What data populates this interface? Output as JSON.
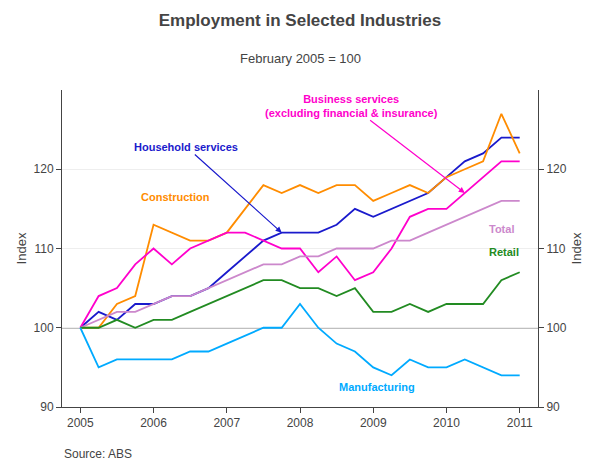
{
  "chart_data": {
    "type": "line",
    "title": "Employment in Selected Industries",
    "subtitle": "February 2005 = 100",
    "ylabel": "Index",
    "y2label": "Index",
    "source": "Source: ABS",
    "x": [
      2005.0,
      2005.25,
      2005.5,
      2005.75,
      2006.0,
      2006.25,
      2006.5,
      2006.75,
      2007.0,
      2007.25,
      2007.5,
      2007.75,
      2008.0,
      2008.25,
      2008.5,
      2008.75,
      2009.0,
      2009.25,
      2009.5,
      2009.75,
      2010.0,
      2010.25,
      2010.5,
      2010.75,
      2011.0
    ],
    "series": [
      {
        "name": "Household services",
        "color": "#1a1acc",
        "values": [
          100,
          102,
          101,
          103,
          103,
          104,
          104,
          105,
          107,
          109,
          111,
          112,
          112,
          112,
          113,
          115,
          114,
          115,
          116,
          117,
          119,
          121,
          122,
          124,
          124
        ]
      },
      {
        "name": "Construction",
        "color": "#ff8c00",
        "values": [
          100,
          100,
          103,
          104,
          113,
          112,
          111,
          111,
          112,
          115,
          118,
          117,
          118,
          117,
          118,
          118,
          116,
          117,
          118,
          117,
          119,
          120,
          121,
          127,
          122
        ]
      },
      {
        "name": "Business services\n(excluding financial & insurance)",
        "color": "#ff00cc",
        "values": [
          100,
          104,
          105,
          108,
          110,
          108,
          110,
          111,
          112,
          112,
          111,
          110,
          110,
          107,
          109,
          106,
          107,
          110,
          114,
          115,
          115,
          117,
          119,
          121,
          121
        ]
      },
      {
        "name": "Total",
        "color": "#cc88cc",
        "values": [
          100,
          101,
          102,
          102,
          103,
          104,
          104,
          105,
          106,
          107,
          108,
          108,
          109,
          109,
          110,
          110,
          110,
          111,
          111,
          112,
          113,
          114,
          115,
          116,
          116
        ]
      },
      {
        "name": "Retail",
        "color": "#228B22",
        "values": [
          100,
          100,
          101,
          100,
          101,
          101,
          102,
          103,
          104,
          105,
          106,
          106,
          105,
          105,
          104,
          105,
          102,
          102,
          103,
          102,
          103,
          103,
          103,
          106,
          107
        ]
      },
      {
        "name": "Manufacturing",
        "color": "#00aaff",
        "values": [
          100,
          95,
          96,
          96,
          96,
          96,
          97,
          97,
          98,
          99,
          100,
          100,
          103,
          100,
          98,
          97,
          95,
          94,
          96,
          95,
          95,
          96,
          95,
          94,
          94
        ]
      }
    ],
    "xlim": [
      2004.75,
      2011.25
    ],
    "xticks": [
      2005,
      2006,
      2007,
      2008,
      2009,
      2010,
      2011
    ],
    "ylim": [
      90,
      130
    ],
    "yticks": [
      90,
      100,
      110,
      120
    ],
    "y2lim": [
      90,
      130
    ],
    "y2ticks": [
      90,
      100,
      110,
      120
    ],
    "reference_line": 100,
    "grid": "y"
  }
}
